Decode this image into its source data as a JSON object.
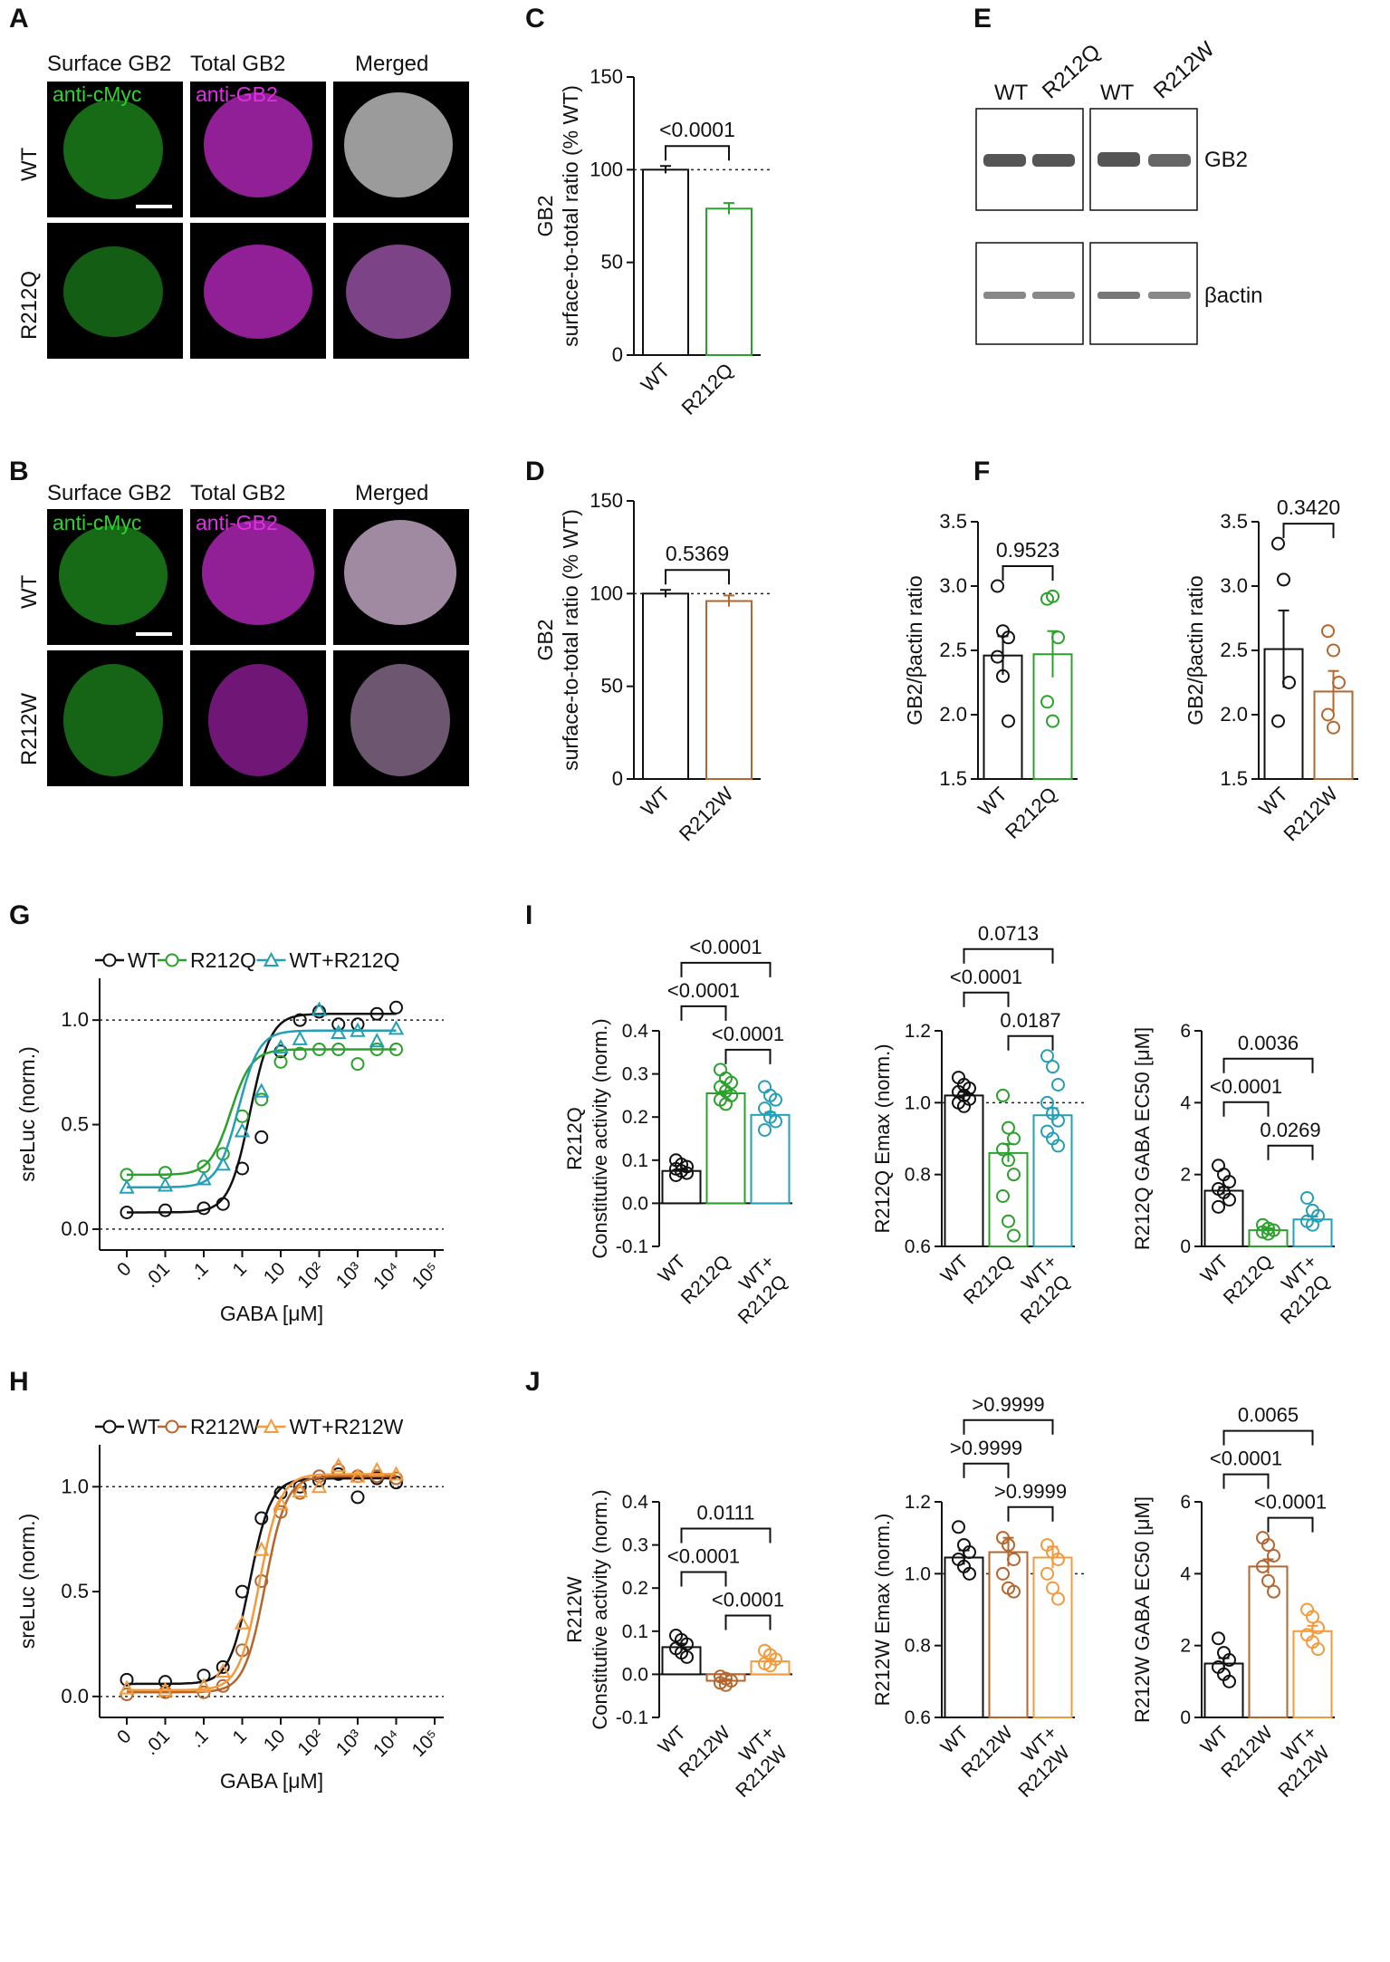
{
  "colors": {
    "wt": "#111111",
    "r212q": "#2ca02c",
    "wtr212q": "#23a0b5",
    "r212w": "#b5652d",
    "wtr212w": "#f39b3c",
    "magenta": "#e030e6",
    "green": "#30c030"
  },
  "panel_letters": {
    "A": "A",
    "B": "B",
    "C": "C",
    "D": "D",
    "E": "E",
    "F": "F",
    "G": "G",
    "H": "H",
    "I": "I",
    "J": "J"
  },
  "micro": {
    "col_headers": [
      "Surface GB2",
      "Total GB2",
      "Merged"
    ],
    "stain_green": "anti-cMyc",
    "stain_magenta": "anti-GB2",
    "A_rows": [
      "WT",
      "R212Q"
    ],
    "B_rows": [
      "WT",
      "R212W"
    ]
  },
  "blot": {
    "lanes_left": [
      "WT",
      "R212Q"
    ],
    "lanes_right": [
      "WT",
      "R212W"
    ],
    "label_top": "GB2",
    "label_bottom": "βactin"
  },
  "chart_data": [
    {
      "id": "C",
      "type": "bar",
      "title": "",
      "categories": [
        "WT",
        "R212Q"
      ],
      "values": [
        100,
        79
      ],
      "errors": [
        2,
        3
      ],
      "ylabel": [
        "GB2",
        "surface-to-total ratio (% WT)"
      ],
      "ylim": [
        0,
        150
      ],
      "yticks": [
        "0",
        "50",
        "100",
        "150"
      ],
      "ref": 100,
      "brackets": [
        {
          "from": 0,
          "to": 1,
          "label": "<0.0001"
        }
      ]
    },
    {
      "id": "D",
      "type": "bar",
      "title": "",
      "categories": [
        "WT",
        "R212W"
      ],
      "values": [
        100,
        96
      ],
      "errors": [
        2,
        3
      ],
      "ylabel": [
        "GB2",
        "surface-to-total ratio (% WT)"
      ],
      "ylim": [
        0,
        150
      ],
      "yticks": [
        "0",
        "50",
        "100",
        "150"
      ],
      "ref": 100,
      "brackets": [
        {
          "from": 0,
          "to": 1,
          "label": "0.5369"
        }
      ]
    },
    {
      "id": "F1",
      "type": "bar",
      "categories": [
        "WT",
        "R212Q"
      ],
      "values": [
        2.46,
        2.47
      ],
      "errors": [
        0.15,
        0.18
      ],
      "points": [
        [
          3.0,
          2.65,
          2.6,
          2.45,
          2.3,
          1.95
        ],
        [
          2.9,
          2.92,
          2.6,
          2.1,
          1.95
        ]
      ],
      "ylabel": [
        "GB2/βactin ratio"
      ],
      "ylim": [
        1.5,
        3.5
      ],
      "yticks": [
        "1.5",
        "2.0",
        "2.5",
        "3.0",
        "3.5"
      ],
      "brackets": [
        {
          "from": 0,
          "to": 1,
          "label": "0.9523"
        }
      ]
    },
    {
      "id": "F2",
      "type": "bar",
      "categories": [
        "WT",
        "R212W"
      ],
      "values": [
        2.51,
        2.18
      ],
      "errors": [
        0.3,
        0.16
      ],
      "points": [
        [
          3.33,
          3.05,
          2.25,
          1.95
        ],
        [
          2.65,
          2.5,
          2.25,
          2.0,
          1.9
        ]
      ],
      "ylabel": [
        "GB2/βactin ratio"
      ],
      "ylim": [
        1.5,
        3.5
      ],
      "yticks": [
        "1.5",
        "2.0",
        "2.5",
        "3.0",
        "3.5"
      ],
      "brackets": [
        {
          "from": 0,
          "to": 1,
          "label": "0.3420"
        }
      ]
    },
    {
      "id": "G",
      "type": "line",
      "legend": [
        "WT",
        "R212Q",
        "WT+R212Q"
      ],
      "xlabel": "GABA [μM]",
      "ylabel": "sreLuc (norm.)",
      "xticks": [
        "0",
        ".01",
        ".1",
        "1",
        "10",
        "10²",
        "10³",
        "10⁴",
        "10⁵"
      ],
      "yticks": [
        "0.0",
        "0.5",
        "1.0"
      ],
      "ylim": [
        -0.1,
        1.2
      ],
      "series": [
        {
          "name": "WT",
          "bottom": 0.08,
          "top": 1.03,
          "logec50": 0.2,
          "x": [
            -3,
            -2,
            -1,
            -0.5,
            0,
            0.5,
            1,
            1.5,
            2,
            2.5,
            3,
            3.5,
            4
          ],
          "y": [
            0.08,
            0.09,
            0.1,
            0.12,
            0.29,
            0.44,
            0.85,
            1.0,
            1.04,
            0.98,
            0.98,
            1.03,
            1.06
          ]
        },
        {
          "name": "R212Q",
          "bottom": 0.26,
          "top": 0.86,
          "logec50": -0.3,
          "x": [
            -3,
            -2,
            -1,
            -0.5,
            0,
            0.5,
            1,
            1.5,
            2,
            2.5,
            3,
            3.5,
            4
          ],
          "y": [
            0.26,
            0.27,
            0.3,
            0.36,
            0.54,
            0.62,
            0.8,
            0.84,
            0.86,
            0.86,
            0.79,
            0.86,
            0.86
          ]
        },
        {
          "name": "WT+R212Q",
          "bottom": 0.2,
          "top": 0.95,
          "logec50": -0.1,
          "x": [
            -3,
            -2,
            -1,
            -0.5,
            0,
            0.5,
            1,
            1.5,
            2,
            2.5,
            3,
            3.5,
            4
          ],
          "y": [
            0.2,
            0.21,
            0.24,
            0.31,
            0.47,
            0.66,
            0.87,
            0.91,
            1.05,
            0.94,
            0.95,
            0.9,
            0.96
          ]
        }
      ]
    },
    {
      "id": "H",
      "type": "line",
      "legend": [
        "WT",
        "R212W",
        "WT+R212W"
      ],
      "xlabel": "GABA [μM]",
      "ylabel": "sreLuc (norm.)",
      "xticks": [
        "0",
        ".01",
        ".1",
        "1",
        "10",
        "10²",
        "10³",
        "10⁴",
        "10⁵"
      ],
      "yticks": [
        "0.0",
        "0.5",
        "1.0"
      ],
      "ylim": [
        -0.1,
        1.2
      ],
      "series": [
        {
          "name": "WT",
          "bottom": 0.06,
          "top": 1.04,
          "logec50": 0.2,
          "x": [
            -3,
            -2,
            -1,
            -0.5,
            0,
            0.5,
            1,
            1.5,
            2,
            2.5,
            3,
            3.5,
            4
          ],
          "y": [
            0.08,
            0.07,
            0.1,
            0.14,
            0.5,
            0.85,
            0.97,
            1.0,
            1.03,
            1.06,
            0.95,
            1.04,
            1.02
          ]
        },
        {
          "name": "R212W",
          "bottom": 0.02,
          "top": 1.05,
          "logec50": 0.6,
          "x": [
            -3,
            -2,
            -1,
            -0.5,
            0,
            0.5,
            1,
            1.5,
            2,
            2.5,
            3,
            3.5,
            4
          ],
          "y": [
            0.01,
            0.02,
            0.02,
            0.05,
            0.22,
            0.55,
            0.88,
            0.97,
            1.05,
            1.08,
            1.05,
            1.05,
            1.04
          ]
        },
        {
          "name": "WT+R212W",
          "bottom": 0.03,
          "top": 1.06,
          "logec50": 0.45,
          "x": [
            -3,
            -2,
            -1,
            -0.5,
            0,
            0.5,
            1,
            1.5,
            2,
            2.5,
            3,
            3.5,
            4
          ],
          "y": [
            0.04,
            0.03,
            0.05,
            0.12,
            0.35,
            0.7,
            0.92,
            0.98,
            1.0,
            1.1,
            1.05,
            1.08,
            1.06
          ]
        }
      ]
    },
    {
      "id": "I1",
      "type": "bar",
      "categories": [
        "WT",
        "R212Q",
        "WT+\nR212Q"
      ],
      "values": [
        0.075,
        0.255,
        0.205
      ],
      "errors": [
        0.004,
        0.005,
        0.006
      ],
      "points": [
        [
          0.1,
          0.09,
          0.085,
          0.08,
          0.075,
          0.07,
          0.065
        ],
        [
          0.31,
          0.29,
          0.28,
          0.27,
          0.26,
          0.25,
          0.24,
          0.23
        ],
        [
          0.27,
          0.25,
          0.24,
          0.22,
          0.2,
          0.19,
          0.17
        ]
      ],
      "ylabel": [
        "R212Q",
        "Constitutive activity (norm.)"
      ],
      "ylim": [
        -0.1,
        0.4
      ],
      "yticks": [
        "-0.1",
        "0.0",
        "0.1",
        "0.2",
        "0.3",
        "0.4"
      ],
      "ref": 0,
      "brackets": [
        {
          "from": 0,
          "to": 2,
          "label": "<0.0001"
        },
        {
          "from": 1,
          "to": 2,
          "label": "<0.0001"
        },
        {
          "from": 0,
          "to": 1,
          "label": "<0.0001"
        }
      ]
    },
    {
      "id": "I2",
      "type": "bar",
      "categories": [
        "WT",
        "R212Q",
        "WT+\nR212Q"
      ],
      "values": [
        1.02,
        0.86,
        0.965
      ],
      "errors": [
        0.01,
        0.025,
        0.02
      ],
      "points": [
        [
          1.07,
          1.05,
          1.04,
          1.03,
          1.02,
          1.01,
          1.0,
          0.99
        ],
        [
          1.02,
          0.93,
          0.9,
          0.87,
          0.84,
          0.8,
          0.74,
          0.67,
          0.63
        ],
        [
          1.13,
          1.1,
          1.05,
          1.0,
          0.97,
          0.95,
          0.92,
          0.9,
          0.88
        ]
      ],
      "ylabel": [
        "R212Q Emax (norm.)"
      ],
      "ylim": [
        0.6,
        1.2
      ],
      "yticks": [
        "0.6",
        "0.8",
        "1.0",
        "1.2"
      ],
      "ref": 1.0,
      "brackets": [
        {
          "from": 0,
          "to": 2,
          "label": "0.0713"
        },
        {
          "from": 1,
          "to": 2,
          "label": "0.0187"
        },
        {
          "from": 0,
          "to": 1,
          "label": "<0.0001"
        }
      ]
    },
    {
      "id": "I3",
      "type": "bar",
      "categories": [
        "WT",
        "R212Q",
        "WT+\nR212Q"
      ],
      "values": [
        1.55,
        0.45,
        0.75
      ],
      "errors": [
        0.1,
        0.05,
        0.08
      ],
      "points": [
        [
          2.25,
          2.0,
          1.8,
          1.6,
          1.5,
          1.3,
          1.1
        ],
        [
          0.6,
          0.5,
          0.45,
          0.4,
          0.35
        ],
        [
          1.35,
          1.0,
          0.85,
          0.7,
          0.6
        ]
      ],
      "ylabel": [
        "R212Q GABA EC50 [μM]"
      ],
      "ylim": [
        0,
        6
      ],
      "yticks": [
        "0",
        "2",
        "4",
        "6"
      ],
      "brackets": [
        {
          "from": 0,
          "to": 2,
          "label": "0.0036"
        },
        {
          "from": 1,
          "to": 2,
          "label": "0.0269"
        },
        {
          "from": 0,
          "to": 1,
          "label": "<0.0001"
        }
      ]
    },
    {
      "id": "J1",
      "type": "bar",
      "categories": [
        "WT",
        "R212W",
        "WT+\nR212W"
      ],
      "values": [
        0.063,
        -0.015,
        0.03
      ],
      "errors": [
        0.008,
        0.003,
        0.006
      ],
      "points": [
        [
          0.09,
          0.08,
          0.07,
          0.06,
          0.05,
          0.04
        ],
        [
          -0.005,
          -0.01,
          -0.015,
          -0.02,
          -0.025
        ],
        [
          0.055,
          0.045,
          0.035,
          0.025,
          0.02
        ]
      ],
      "ylabel": [
        "R212W",
        "Constitutive activity (norm.)"
      ],
      "ylim": [
        -0.1,
        0.4
      ],
      "yticks": [
        "-0.1",
        "0.0",
        "0.1",
        "0.2",
        "0.3",
        "0.4"
      ],
      "ref": 0,
      "brackets": [
        {
          "from": 0,
          "to": 2,
          "label": "0.0111"
        },
        {
          "from": 1,
          "to": 2,
          "label": "<0.0001"
        },
        {
          "from": 0,
          "to": 1,
          "label": "<0.0001"
        }
      ]
    },
    {
      "id": "J2",
      "type": "bar",
      "categories": [
        "WT",
        "R212W",
        "WT+\nR212W"
      ],
      "values": [
        1.045,
        1.06,
        1.045
      ],
      "errors": [
        0.02,
        0.04,
        0.03
      ],
      "points": [
        [
          1.13,
          1.08,
          1.06,
          1.04,
          1.02,
          1.0
        ],
        [
          1.1,
          1.08,
          1.04,
          1.0,
          0.96,
          0.95
        ],
        [
          1.08,
          1.06,
          1.04,
          1.0,
          0.96,
          0.93
        ]
      ],
      "ylabel": [
        "R212W Emax (norm.)"
      ],
      "ylim": [
        0.6,
        1.2
      ],
      "yticks": [
        "0.6",
        "0.8",
        "1.0",
        "1.2"
      ],
      "ref": 1.0,
      "brackets": [
        {
          "from": 0,
          "to": 2,
          "label": ">0.9999"
        },
        {
          "from": 1,
          "to": 2,
          "label": ">0.9999"
        },
        {
          "from": 0,
          "to": 1,
          "label": ">0.9999"
        }
      ]
    },
    {
      "id": "J3",
      "type": "bar",
      "categories": [
        "WT",
        "R212W",
        "WT+\nR212W"
      ],
      "values": [
        1.5,
        4.2,
        2.4
      ],
      "errors": [
        0.15,
        0.2,
        0.15
      ],
      "points": [
        [
          2.2,
          1.8,
          1.6,
          1.4,
          1.2,
          1.0
        ],
        [
          5.0,
          4.8,
          4.5,
          4.2,
          3.8,
          3.5
        ],
        [
          3.0,
          2.8,
          2.5,
          2.3,
          2.1,
          1.9
        ]
      ],
      "ylabel": [
        "R212W GABA EC50 [μM]"
      ],
      "ylim": [
        0,
        6
      ],
      "yticks": [
        "0",
        "2",
        "4",
        "6"
      ],
      "brackets": [
        {
          "from": 0,
          "to": 2,
          "label": "0.0065"
        },
        {
          "from": 1,
          "to": 2,
          "label": "<0.0001"
        },
        {
          "from": 0,
          "to": 1,
          "label": "<0.0001"
        }
      ]
    }
  ]
}
